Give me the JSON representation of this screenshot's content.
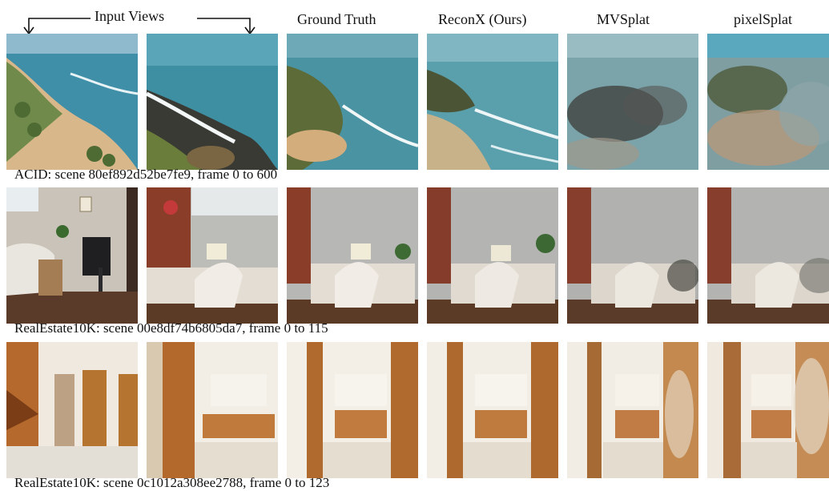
{
  "figure": {
    "headers": {
      "input_views": "Input Views",
      "ground_truth": "Ground Truth",
      "reconx": "ReconX (Ours)",
      "mvsplat": "MVSplat",
      "pixelsplat": "pixelSplat"
    },
    "rows": [
      {
        "caption": "ACID: scene 80ef892d52be7fe9, frame 0 to 600"
      },
      {
        "caption": "RealEstate10K: scene 00e8df74b6805da7, frame 0 to 115"
      },
      {
        "caption": "RealEstate10K: scene 0c1012a308ee2788, frame 0 to 123"
      }
    ]
  }
}
